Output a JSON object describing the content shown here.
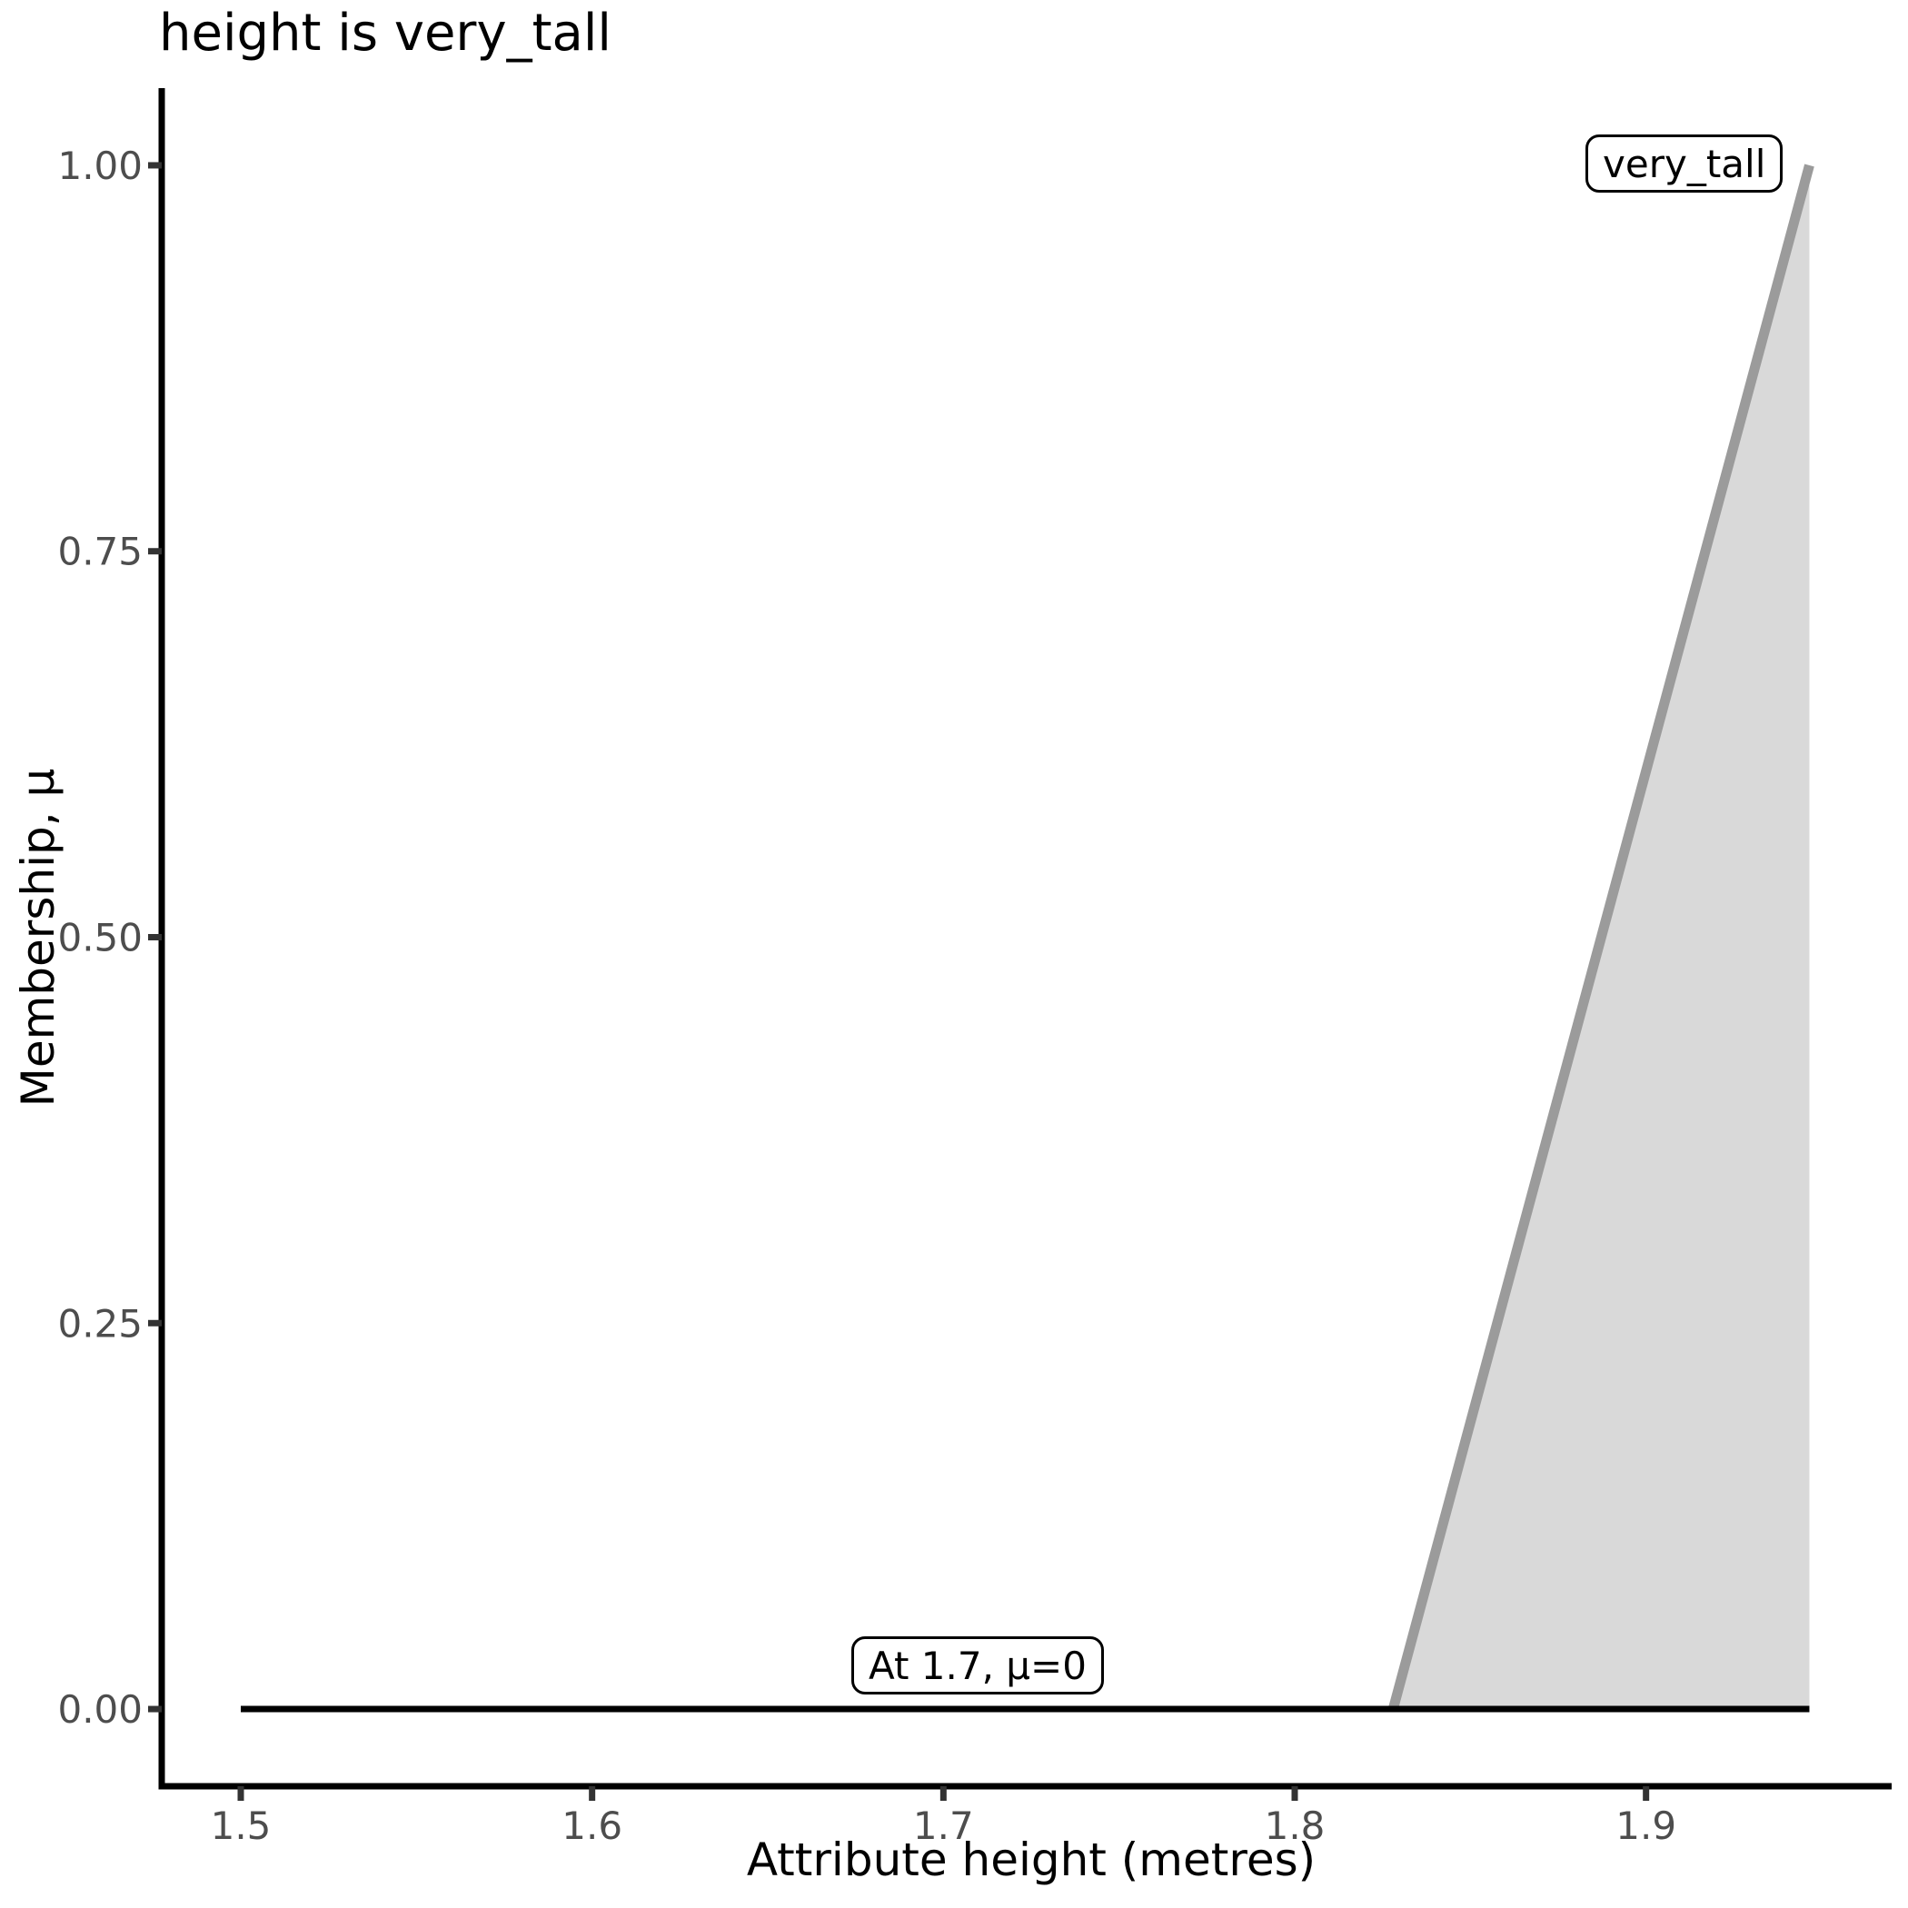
{
  "title": "height is very_tall",
  "chart_data": {
    "type": "area",
    "title": "height is very_tall",
    "xlabel": "Attribute height (metres)",
    "ylabel": "Membership, μ",
    "x_ticks": [
      1.5,
      1.6,
      1.7,
      1.8,
      1.9
    ],
    "x_tick_labels": [
      "1.5",
      "1.6",
      "1.7",
      "1.8",
      "1.9"
    ],
    "y_ticks": [
      0.0,
      0.25,
      0.5,
      0.75,
      1.0
    ],
    "y_tick_labels": [
      "0.00",
      "0.25",
      "0.50",
      "0.75",
      "1.00"
    ],
    "xlim": [
      1.4775,
      1.9725
    ],
    "ylim": [
      -0.05,
      1.05
    ],
    "grid": false,
    "legend": false,
    "background": "#ffffff",
    "axis_color": "#000000",
    "tick_label_color": "#4d4d4d",
    "series": [
      {
        "id": "very-tall-membership",
        "name": "very_tall",
        "color": "#9b9b9b",
        "width": 11,
        "points": [
          [
            1.828,
            0
          ],
          [
            1.9465,
            1
          ]
        ],
        "fill": "#d9d9d9",
        "fill_polygon": [
          [
            1.828,
            0
          ],
          [
            1.9465,
            1
          ],
          [
            1.9465,
            0
          ]
        ]
      },
      {
        "id": "zero-membership-baseline",
        "name": "At 1.7, μ=0",
        "color": "#000000",
        "width": 7,
        "points": [
          [
            1.5,
            0
          ],
          [
            1.9465,
            0
          ]
        ]
      }
    ],
    "annotations": [
      {
        "text": "very_tall",
        "x": 1.91,
        "y": 1.0
      },
      {
        "text": "At 1.7, μ=0",
        "x": 1.71,
        "y": 0.03
      }
    ]
  }
}
